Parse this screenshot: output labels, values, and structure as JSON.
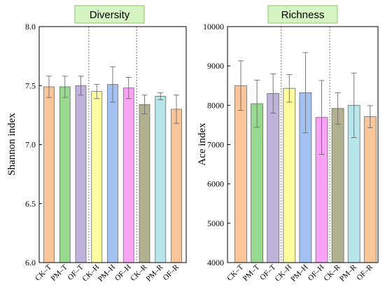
{
  "chart_data": [
    {
      "type": "bar",
      "title": "Diversity",
      "xlabel": "",
      "ylabel": "Shannon index",
      "ylim": [
        6.0,
        8.0
      ],
      "yticks": [
        "6.0",
        "6.5",
        "7.0",
        "7.5",
        "8.0"
      ],
      "ytick_values": [
        6.0,
        6.5,
        7.0,
        7.5,
        8.0
      ],
      "categories": [
        "CK–T",
        "PM–T",
        "OF–T",
        "CK–H",
        "PM–H",
        "OF–H",
        "CK–R",
        "PM–R",
        "OF–R"
      ],
      "values": [
        7.49,
        7.49,
        7.5,
        7.45,
        7.51,
        7.48,
        7.34,
        7.41,
        7.3
      ],
      "errors": [
        0.09,
        0.09,
        0.08,
        0.06,
        0.15,
        0.09,
        0.08,
        0.03,
        0.12
      ],
      "colors": [
        "#fbc59a",
        "#98d98f",
        "#bfb3db",
        "#fdfd9f",
        "#a3c1f2",
        "#f9a2f6",
        "#b1b08f",
        "#b6e6ea",
        "#fbc59a"
      ],
      "group_separators_after": [
        3,
        6
      ]
    },
    {
      "type": "bar",
      "title": "Richness",
      "xlabel": "",
      "ylabel": "Ace index",
      "ylim": [
        4000,
        10000
      ],
      "yticks": [
        "4000",
        "5000",
        "6000",
        "7000",
        "8000",
        "9000",
        "10000"
      ],
      "ytick_values": [
        4000,
        5000,
        6000,
        7000,
        8000,
        9000,
        10000
      ],
      "categories": [
        "CK–T",
        "PM–T",
        "OF–T",
        "CK–H",
        "PM–H",
        "OF–H",
        "CK–R",
        "PM–R",
        "OF–R"
      ],
      "values": [
        8500,
        8040,
        8300,
        8430,
        8320,
        7690,
        7920,
        8000,
        7710
      ],
      "errors": [
        630,
        600,
        500,
        350,
        1020,
        940,
        400,
        820,
        280
      ],
      "colors": [
        "#fbc59a",
        "#98d98f",
        "#bfb3db",
        "#fdfd9f",
        "#a3c1f2",
        "#f9a2f6",
        "#b1b08f",
        "#b6e6ea",
        "#fbc59a"
      ],
      "group_separators_after": [
        3,
        6
      ]
    }
  ]
}
